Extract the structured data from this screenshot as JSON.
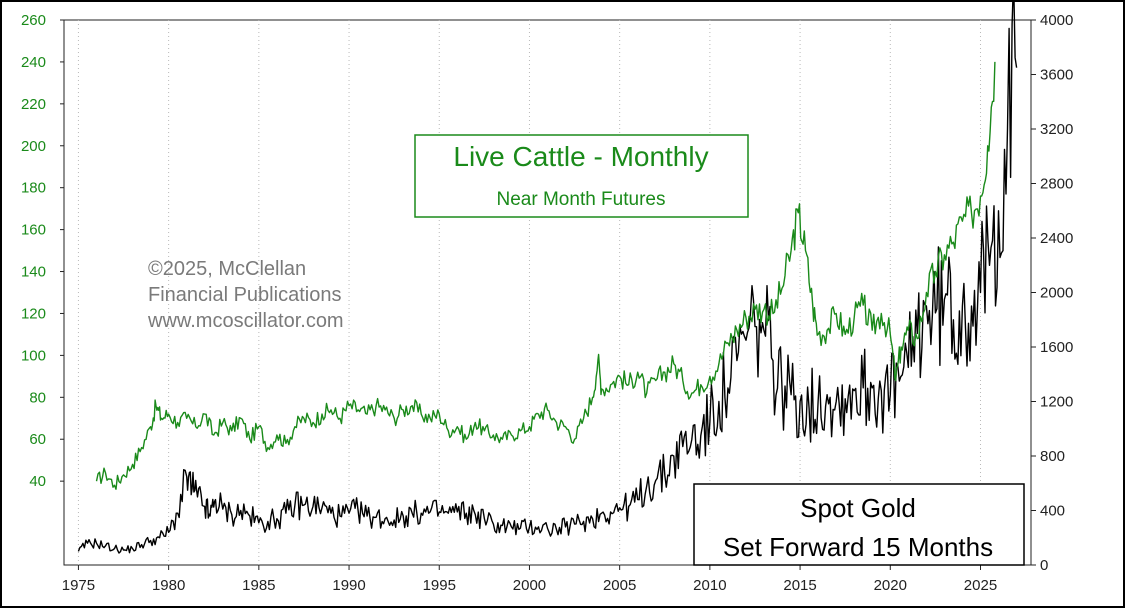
{
  "chart_data": {
    "type": "line",
    "title": "Live Cattle - Monthly",
    "subtitle": "Near Month Futures",
    "secondary_title": "Spot Gold",
    "secondary_subtitle": "Set Forward 15 Months",
    "copyright": [
      "©2025, McClellan",
      "Financial Publications",
      "www.mcoscillator.com"
    ],
    "x_ticks": [
      "1975",
      "1980",
      "1985",
      "1990",
      "1995",
      "2000",
      "2005",
      "2010",
      "2015",
      "2020",
      "2025"
    ],
    "xlim": [
      1974.2,
      2027.8
    ],
    "left_axis": {
      "ylim": [
        0,
        260
      ],
      "ticks": [
        "40",
        "60",
        "80",
        "100",
        "120",
        "140",
        "160",
        "180",
        "200",
        "220",
        "240",
        "260"
      ]
    },
    "right_axis": {
      "ylim": [
        0,
        4000
      ],
      "ticks": [
        "0",
        "400",
        "800",
        "1200",
        "1600",
        "2000",
        "2400",
        "2800",
        "3200",
        "3600",
        "4000"
      ]
    },
    "colors": {
      "cattle": "#1a8a1a",
      "gold": "#000000",
      "left_ticks": "#1a8a1a"
    },
    "series": [
      {
        "name": "Live Cattle - Monthly (Near Month Futures)",
        "axis": "left",
        "x": [
          1976.0,
          1976.5,
          1977.0,
          1977.5,
          1978.0,
          1978.5,
          1979.0,
          1979.3,
          1979.6,
          1980.0,
          1980.5,
          1981.0,
          1981.5,
          1982.0,
          1982.5,
          1983.0,
          1983.5,
          1984.0,
          1984.5,
          1985.0,
          1985.5,
          1986.0,
          1986.5,
          1987.0,
          1987.5,
          1988.0,
          1988.5,
          1989.0,
          1989.5,
          1990.0,
          1990.5,
          1991.0,
          1991.5,
          1992.0,
          1992.5,
          1993.0,
          1993.5,
          1994.0,
          1994.5,
          1995.0,
          1995.5,
          1996.0,
          1996.5,
          1997.0,
          1997.5,
          1998.0,
          1998.5,
          1999.0,
          1999.5,
          2000.0,
          2000.5,
          2001.0,
          2001.5,
          2002.0,
          2002.5,
          2003.0,
          2003.5,
          2003.8,
          2004.0,
          2004.5,
          2005.0,
          2005.5,
          2006.0,
          2006.5,
          2007.0,
          2007.5,
          2008.0,
          2008.5,
          2009.0,
          2009.5,
          2010.0,
          2010.5,
          2011.0,
          2011.5,
          2012.0,
          2012.5,
          2013.0,
          2013.5,
          2014.0,
          2014.5,
          2014.9,
          2015.3,
          2015.7,
          2016.0,
          2016.5,
          2017.0,
          2017.5,
          2018.0,
          2018.5,
          2019.0,
          2019.5,
          2020.0,
          2020.3,
          2020.6,
          2021.0,
          2021.5,
          2022.0,
          2022.5,
          2023.0,
          2023.5,
          2024.0,
          2024.5,
          2025.0,
          2025.4,
          2025.8
        ],
        "values": [
          40,
          44,
          38,
          43,
          48,
          56,
          66,
          76,
          70,
          72,
          68,
          70,
          66,
          72,
          62,
          68,
          64,
          70,
          60,
          66,
          56,
          62,
          58,
          66,
          70,
          68,
          72,
          74,
          70,
          76,
          74,
          72,
          76,
          74,
          70,
          74,
          76,
          72,
          70,
          72,
          64,
          66,
          60,
          68,
          64,
          62,
          60,
          62,
          64,
          66,
          72,
          74,
          68,
          66,
          60,
          70,
          80,
          98,
          84,
          86,
          90,
          86,
          92,
          82,
          88,
          92,
          96,
          88,
          82,
          86,
          90,
          96,
          106,
          112,
          118,
          122,
          122,
          120,
          132,
          150,
          168,
          150,
          124,
          110,
          112,
          120,
          110,
          118,
          124,
          112,
          120,
          110,
          88,
          104,
          112,
          108,
          130,
          140,
          148,
          154,
          164,
          168,
          176,
          200,
          240
        ]
      },
      {
        "name": "Spot Gold (Set Forward 15 Months)",
        "axis": "right",
        "x": [
          1975.0,
          1975.5,
          1976.0,
          1976.5,
          1977.0,
          1977.5,
          1978.0,
          1978.5,
          1979.0,
          1979.5,
          1980.0,
          1980.5,
          1981.0,
          1981.3,
          1981.6,
          1982.0,
          1982.3,
          1982.6,
          1983.0,
          1983.5,
          1984.0,
          1984.5,
          1985.0,
          1985.5,
          1986.0,
          1986.5,
          1987.0,
          1987.5,
          1988.0,
          1988.5,
          1989.0,
          1989.5,
          1990.0,
          1990.5,
          1991.0,
          1991.5,
          1992.0,
          1992.5,
          1993.0,
          1993.5,
          1994.0,
          1994.5,
          1995.0,
          1995.5,
          1996.0,
          1996.5,
          1997.0,
          1997.5,
          1998.0,
          1998.5,
          1999.0,
          1999.5,
          2000.0,
          2000.5,
          2001.0,
          2001.5,
          2002.0,
          2002.5,
          2003.0,
          2003.5,
          2004.0,
          2004.5,
          2005.0,
          2005.5,
          2006.0,
          2006.5,
          2007.0,
          2007.5,
          2008.0,
          2008.5,
          2009.0,
          2009.5,
          2010.0,
          2010.5,
          2011.0,
          2011.5,
          2012.0,
          2012.5,
          2013.0,
          2013.5,
          2014.0,
          2014.5,
          2015.0,
          2015.5,
          2016.0,
          2016.5,
          2017.0,
          2017.5,
          2018.0,
          2018.5,
          2019.0,
          2019.5,
          2020.0,
          2020.5,
          2021.0,
          2021.5,
          2022.0,
          2022.5,
          2023.0,
          2023.5,
          2024.0,
          2024.5,
          2025.0,
          2025.5,
          2026.0,
          2026.5,
          2027.0
        ],
        "values": [
          100,
          160,
          160,
          140,
          120,
          110,
          120,
          150,
          180,
          200,
          240,
          380,
          650,
          560,
          500,
          430,
          360,
          480,
          410,
          370,
          400,
          360,
          310,
          320,
          340,
          380,
          440,
          440,
          430,
          420,
          380,
          360,
          380,
          400,
          360,
          350,
          340,
          330,
          360,
          380,
          380,
          390,
          390,
          380,
          390,
          380,
          370,
          340,
          300,
          290,
          280,
          270,
          280,
          280,
          270,
          260,
          280,
          300,
          320,
          340,
          380,
          390,
          420,
          430,
          480,
          580,
          620,
          660,
          800,
          870,
          920,
          950,
          1050,
          1200,
          1300,
          1500,
          1650,
          1750,
          1720,
          1500,
          1300,
          1250,
          1200,
          1150,
          1200,
          1250,
          1200,
          1220,
          1280,
          1300,
          1300,
          1280,
          1250,
          1350,
          1450,
          1700,
          1900,
          1850,
          1950,
          1800,
          1900,
          1900,
          2000,
          2200,
          2600,
          3200,
          3650
        ]
      }
    ]
  }
}
